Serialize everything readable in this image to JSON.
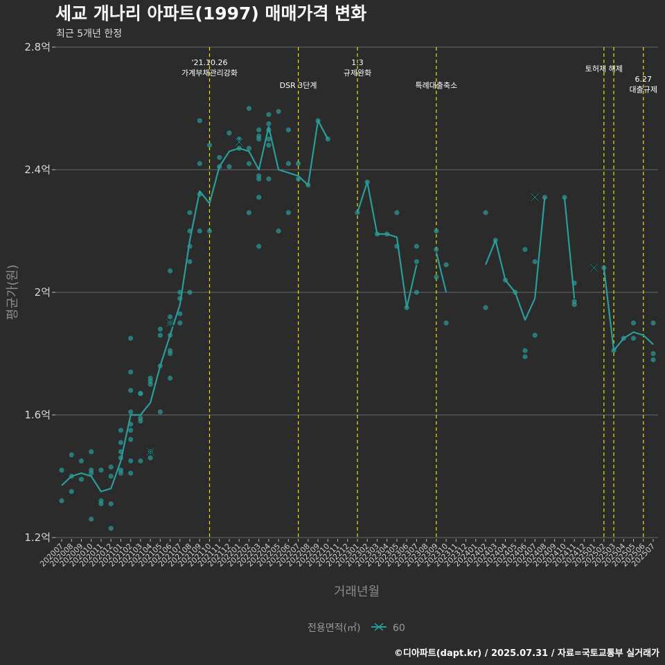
{
  "chart_data": {
    "type": "line",
    "title": "세교 개나리 아파트(1997) 매매가격 변화",
    "subtitle": "최근 5개년 한정",
    "xlabel": "거래년월",
    "ylabel": "평균가(원)",
    "ylim": [
      1.15,
      2.8
    ],
    "y_ticks": [
      {
        "value": 1.2,
        "label": "1.2억"
      },
      {
        "value": 1.6,
        "label": "1.6억"
      },
      {
        "value": 2.0,
        "label": "2억"
      },
      {
        "value": 2.4,
        "label": "2.4억"
      },
      {
        "value": 2.8,
        "label": "2.8억"
      }
    ],
    "categories": [
      "202007",
      "202008",
      "202009",
      "202010",
      "202011",
      "202012",
      "202101",
      "202102",
      "202103",
      "202104",
      "202105",
      "202106",
      "202107",
      "202108",
      "202109",
      "202110",
      "202111",
      "202112",
      "202201",
      "202202",
      "202203",
      "202204",
      "202205",
      "202206",
      "202207",
      "202208",
      "202209",
      "202210",
      "202211",
      "202212",
      "202301",
      "202302",
      "202303",
      "202304",
      "202305",
      "202306",
      "202307",
      "202308",
      "202309",
      "202310",
      "202311",
      "202312",
      "202401",
      "202402",
      "202403",
      "202404",
      "202405",
      "202406",
      "202407",
      "202408",
      "202409",
      "202410",
      "202411",
      "202412",
      "202501",
      "202502",
      "202503",
      "202504",
      "202505",
      "202506",
      "202507"
    ],
    "colors": {
      "background": "#2b2b2b",
      "grid": "#6a6a6a",
      "line": "#2a9d9a",
      "point": "#2a9d9a",
      "event_line": "#e6e600",
      "max_min_marker": "#111111"
    },
    "series": [
      {
        "name": "60",
        "line_segments": [
          [
            [
              0,
              1.37
            ],
            [
              1,
              1.4
            ],
            [
              2,
              1.41
            ],
            [
              3,
              1.4
            ],
            [
              4,
              1.35
            ],
            [
              5,
              1.36
            ],
            [
              6,
              1.45
            ],
            [
              7,
              1.6
            ],
            [
              8,
              1.6
            ],
            [
              9,
              1.64
            ],
            [
              10,
              1.76
            ],
            [
              11,
              1.86
            ],
            [
              12,
              1.96
            ],
            [
              13,
              2.17
            ],
            [
              14,
              2.33
            ],
            [
              15,
              2.29
            ],
            [
              16,
              2.41
            ],
            [
              17,
              2.46
            ],
            [
              18,
              2.47
            ],
            [
              19,
              2.46
            ],
            [
              20,
              2.4
            ],
            [
              21,
              2.54
            ],
            [
              22,
              2.4
            ],
            [
              23,
              2.39
            ],
            [
              24,
              2.38
            ],
            [
              25,
              2.35
            ],
            [
              26,
              2.56
            ],
            [
              27,
              2.5
            ]
          ],
          [
            [
              30,
              2.26
            ],
            [
              31,
              2.36
            ],
            [
              32,
              2.19
            ],
            [
              33,
              2.19
            ],
            [
              34,
              2.18
            ],
            [
              35,
              1.95
            ],
            [
              36,
              2.09
            ]
          ],
          [
            [
              38,
              2.13
            ],
            [
              39,
              2.0
            ]
          ],
          [
            [
              43,
              2.09
            ],
            [
              44,
              2.17
            ],
            [
              45,
              2.04
            ],
            [
              46,
              2.0
            ],
            [
              47,
              1.91
            ],
            [
              48,
              1.98
            ],
            [
              49,
              2.31
            ]
          ],
          [
            [
              51,
              2.31
            ],
            [
              52,
              1.98
            ]
          ],
          [
            [
              55,
              2.08
            ],
            [
              56,
              1.81
            ],
            [
              57,
              1.85
            ],
            [
              58,
              1.87
            ],
            [
              59,
              1.86
            ],
            [
              60,
              1.83
            ]
          ]
        ],
        "points": [
          [
            0,
            1.42
          ],
          [
            0,
            1.32
          ],
          [
            1,
            1.4
          ],
          [
            1,
            1.47
          ],
          [
            1,
            1.35
          ],
          [
            2,
            1.39
          ],
          [
            2,
            1.45
          ],
          [
            3,
            1.42
          ],
          [
            3,
            1.41
          ],
          [
            3,
            1.48
          ],
          [
            3,
            1.26
          ],
          [
            4,
            1.42
          ],
          [
            4,
            1.32
          ],
          [
            4,
            1.31
          ],
          [
            5,
            1.43
          ],
          [
            5,
            1.4
          ],
          [
            5,
            1.31
          ],
          [
            5,
            1.23
          ],
          [
            6,
            1.48
          ],
          [
            6,
            1.46
          ],
          [
            6,
            1.41
          ],
          [
            6,
            1.42
          ],
          [
            6,
            1.51
          ],
          [
            6,
            1.55
          ],
          [
            7,
            1.85
          ],
          [
            7,
            1.74
          ],
          [
            7,
            1.68
          ],
          [
            7,
            1.61
          ],
          [
            7,
            1.52
          ],
          [
            7,
            1.45
          ],
          [
            7,
            1.41
          ],
          [
            7,
            1.57
          ],
          [
            7,
            1.55
          ],
          [
            8,
            1.67
          ],
          [
            8,
            1.59
          ],
          [
            8,
            1.58
          ],
          [
            8,
            1.45
          ],
          [
            8,
            1.67
          ],
          [
            9,
            1.72
          ],
          [
            9,
            1.71
          ],
          [
            9,
            1.7
          ],
          [
            9,
            1.46
          ],
          [
            9,
            1.48
          ],
          [
            10,
            1.88
          ],
          [
            10,
            1.86
          ],
          [
            10,
            1.76
          ],
          [
            10,
            1.61
          ],
          [
            11,
            2.07
          ],
          [
            11,
            1.92
          ],
          [
            11,
            1.9
          ],
          [
            11,
            1.86
          ],
          [
            11,
            1.81
          ],
          [
            11,
            1.8
          ],
          [
            11,
            1.72
          ],
          [
            12,
            2.0
          ],
          [
            12,
            1.98
          ],
          [
            12,
            1.93
          ],
          [
            12,
            1.9
          ],
          [
            13,
            2.26
          ],
          [
            13,
            2.2
          ],
          [
            13,
            2.15
          ],
          [
            13,
            2.1
          ],
          [
            13,
            2.0
          ],
          [
            14,
            2.56
          ],
          [
            14,
            2.42
          ],
          [
            14,
            2.32
          ],
          [
            14,
            2.2
          ],
          [
            15,
            2.48
          ],
          [
            15,
            2.2
          ],
          [
            16,
            2.44
          ],
          [
            16,
            2.41
          ],
          [
            17,
            2.52
          ],
          [
            17,
            2.41
          ],
          [
            18,
            2.47
          ],
          [
            18,
            2.5
          ],
          [
            19,
            2.6
          ],
          [
            19,
            2.47
          ],
          [
            19,
            2.42
          ],
          [
            19,
            2.26
          ],
          [
            20,
            2.53
          ],
          [
            20,
            2.51
          ],
          [
            20,
            2.5
          ],
          [
            20,
            2.38
          ],
          [
            20,
            2.37
          ],
          [
            20,
            2.31
          ],
          [
            20,
            2.15
          ],
          [
            21,
            2.58
          ],
          [
            21,
            2.55
          ],
          [
            21,
            2.53
          ],
          [
            21,
            2.5
          ],
          [
            21,
            2.48
          ],
          [
            21,
            2.37
          ],
          [
            22,
            2.59
          ],
          [
            22,
            2.2
          ],
          [
            23,
            2.53
          ],
          [
            23,
            2.42
          ],
          [
            23,
            2.26
          ],
          [
            24,
            2.42
          ],
          [
            24,
            2.37
          ],
          [
            25,
            2.35
          ],
          [
            26,
            2.56
          ],
          [
            27,
            2.5
          ],
          [
            30,
            2.26
          ],
          [
            31,
            2.36
          ],
          [
            32,
            2.19
          ],
          [
            33,
            2.19
          ],
          [
            34,
            2.26
          ],
          [
            34,
            2.15
          ],
          [
            35,
            1.95
          ],
          [
            36,
            2.15
          ],
          [
            36,
            2.1
          ],
          [
            36,
            2.0
          ],
          [
            38,
            2.2
          ],
          [
            38,
            2.14
          ],
          [
            38,
            2.05
          ],
          [
            39,
            2.09
          ],
          [
            39,
            1.9
          ],
          [
            43,
            2.26
          ],
          [
            43,
            1.95
          ],
          [
            44,
            2.17
          ],
          [
            45,
            2.04
          ],
          [
            46,
            2.0
          ],
          [
            47,
            2.14
          ],
          [
            47,
            1.81
          ],
          [
            47,
            1.79
          ],
          [
            48,
            2.1
          ],
          [
            48,
            1.86
          ],
          [
            49,
            2.31
          ],
          [
            51,
            2.31
          ],
          [
            52,
            2.03
          ],
          [
            52,
            1.97
          ],
          [
            52,
            1.96
          ],
          [
            55,
            2.08
          ],
          [
            56,
            1.81
          ],
          [
            57,
            1.85
          ],
          [
            58,
            1.9
          ],
          [
            58,
            1.85
          ],
          [
            60,
            1.9
          ],
          [
            60,
            1.8
          ],
          [
            60,
            1.78
          ]
        ],
        "markers": [
          [
            9,
            1.48
          ],
          [
            11,
            1.9
          ],
          [
            18,
            2.49
          ],
          [
            48,
            2.31
          ],
          [
            54,
            2.08
          ]
        ]
      }
    ],
    "events": [
      {
        "index": 15,
        "lines": [
          "'21.10.26",
          "가계부채관리강화"
        ]
      },
      {
        "index": 24,
        "lines": [
          "DSR 3단계"
        ]
      },
      {
        "index": 30,
        "lines": [
          "1.3",
          "규제완화"
        ]
      },
      {
        "index": 38,
        "lines": [
          "특례대출축소"
        ]
      },
      {
        "index": 55,
        "lines": [
          "토허제 해제"
        ]
      },
      {
        "index": 56,
        "lines": []
      },
      {
        "index": 59,
        "lines": [
          "6.27",
          "대출규제"
        ]
      }
    ],
    "legend": {
      "title": "전용면적(㎡)",
      "label": "60",
      "position": "bottom"
    },
    "caption": "©디아파트(dapt.kr) / 2025.07.31 / 자료=국토교통부 실거래가"
  }
}
